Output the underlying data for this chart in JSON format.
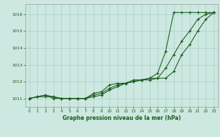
{
  "x": [
    0,
    1,
    2,
    3,
    4,
    5,
    6,
    7,
    8,
    9,
    10,
    11,
    12,
    13,
    14,
    15,
    16,
    17,
    18,
    19,
    20,
    21,
    22,
    23
  ],
  "series1": [
    1011.0,
    1011.1,
    1011.1,
    1011.1,
    1011.0,
    1011.0,
    1011.0,
    1011.0,
    1011.3,
    1011.4,
    1011.8,
    1011.9,
    1011.9,
    1012.1,
    1012.1,
    1012.2,
    1012.2,
    1012.2,
    1012.6,
    1013.6,
    1014.2,
    1015.0,
    1015.7,
    1016.1
  ],
  "series2": [
    1011.0,
    1011.1,
    1011.2,
    1011.0,
    1011.0,
    1011.0,
    1011.0,
    1011.0,
    1011.1,
    1011.2,
    1011.5,
    1011.7,
    1011.9,
    1012.0,
    1012.1,
    1012.1,
    1012.2,
    1012.8,
    1013.6,
    1014.4,
    1015.0,
    1015.7,
    1016.0,
    1016.1
  ],
  "series3": [
    1011.0,
    1011.1,
    1011.2,
    1011.1,
    1011.0,
    1011.0,
    1011.0,
    1011.0,
    1011.2,
    1011.3,
    1011.6,
    1011.8,
    1011.9,
    1012.0,
    1012.1,
    1012.2,
    1012.5,
    1013.8,
    1016.1,
    1016.1,
    1016.1,
    1016.1,
    1016.1,
    1016.1
  ],
  "line_color": "#1a5c1a",
  "bg_color": "#cce8e0",
  "grid_color": "#aacccc",
  "title": "Graphe pression niveau de la mer (hPa)",
  "ylim_min": 1010.5,
  "ylim_max": 1016.6,
  "yticks": [
    1011,
    1012,
    1013,
    1014,
    1015,
    1016
  ]
}
